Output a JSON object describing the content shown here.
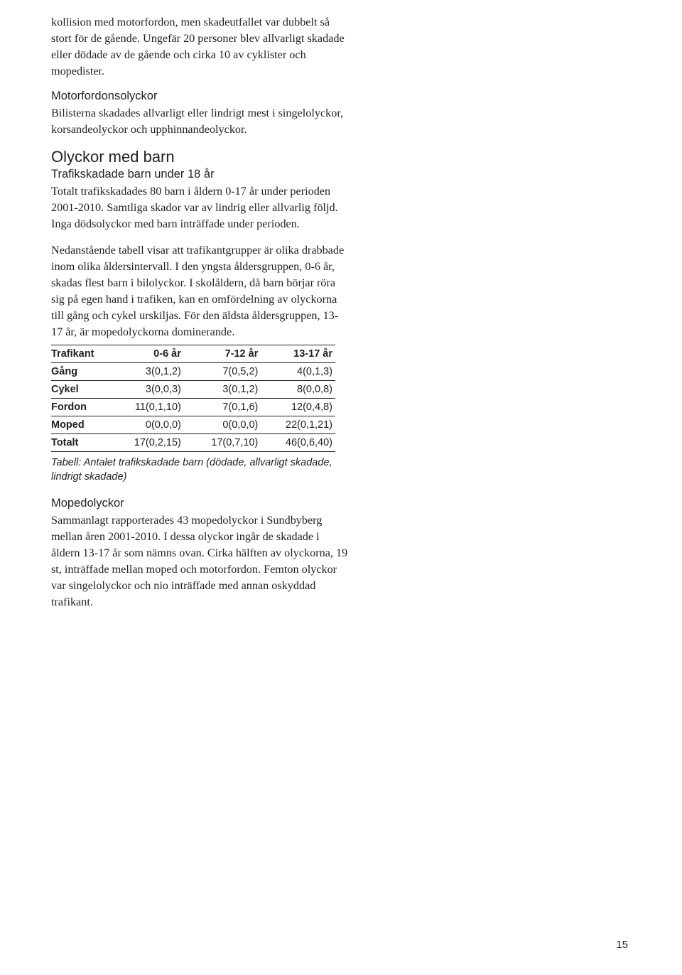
{
  "para1": "kollision med motorfordon, men skadeutfallet var dubbelt så stort för de gående. Ungefär 20 personer blev allvarligt skadade eller dödade av de gående och cirka 10 av cyklister och mopedister.",
  "sub_motor": "Motorfordonsolyckor",
  "para2": "Bilisterna skadades allvarligt eller lindrigt mest i singelolyckor, korsandeolyckor och upphinnandeolyckor.",
  "heading_barn": "Olyckor med barn",
  "sub_trafik": "Trafikskadade barn under 18 år",
  "para3": "Totalt trafikskadades 80 barn i åldern 0-17 år under perioden 2001-2010. Samtliga skador var av lindrig eller allvarlig följd. Inga dödsolyckor med barn inträffade under perioden.",
  "para4": "Nedanstående tabell visar att trafikantgrupper är olika drabbade inom olika åldersintervall. I den yngsta åldersgruppen, 0-6 år, skadas flest barn i bilolyckor. I skolåldern, då barn börjar röra sig på egen hand i trafiken, kan en omfördelning av olyckorna till gång och cykel urskiljas. För den äldsta åldersgruppen, 13-17 år, är mopedolyckorna dominerande.",
  "table": {
    "columns": [
      "Trafikant",
      "0-6 år",
      "7-12 år",
      "13-17 år"
    ],
    "rows": [
      [
        "Gång",
        "3(0,1,2)",
        "7(0,5,2)",
        "4(0,1,3)"
      ],
      [
        "Cykel",
        "3(0,0,3)",
        "3(0,1,2)",
        "8(0,0,8)"
      ],
      [
        "Fordon",
        "11(0,1,10)",
        "7(0,1,6)",
        "12(0,4,8)"
      ],
      [
        "Moped",
        "0(0,0,0)",
        "0(0,0,0)",
        "22(0,1,21)"
      ],
      [
        "Totalt",
        "17(0,2,15)",
        "17(0,7,10)",
        "46(0,6,40)"
      ]
    ]
  },
  "table_caption": "Tabell: Antalet trafikskadade barn (dödade, allvarligt skadade, lindrigt skadade)",
  "sub_moped": "Mopedolyckor",
  "para5": "Sammanlagt rapporterades 43 mopedolyckor i Sundbyberg mellan åren 2001-2010. I dessa olyckor ingår de skadade i åldern 13-17 år som nämns ovan. Cirka hälften av olyckorna, 19 st, inträffade mellan moped och motorfordon. Femton olyckor var singelolyckor och nio inträffade med annan oskyddad trafikant.",
  "page_number": "15"
}
